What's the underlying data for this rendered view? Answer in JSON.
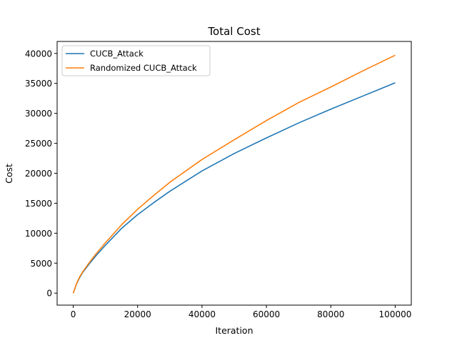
{
  "chart_data": {
    "type": "line",
    "title": "Total Cost",
    "xlabel": "Iteration",
    "ylabel": "Cost",
    "xlim": [
      -5000,
      105000
    ],
    "ylim": [
      -2000,
      42000
    ],
    "xticks": [
      0,
      20000,
      40000,
      60000,
      80000,
      100000
    ],
    "yticks": [
      0,
      5000,
      10000,
      15000,
      20000,
      25000,
      30000,
      35000,
      40000
    ],
    "grid": false,
    "legend_position": "top-left",
    "x": [
      0,
      1000,
      2000,
      3000,
      5000,
      7000,
      10000,
      15000,
      20000,
      25000,
      30000,
      40000,
      50000,
      60000,
      70000,
      80000,
      90000,
      100000
    ],
    "series": [
      {
        "name": "CUCB_Attack",
        "color": "#1f77b4",
        "values": [
          0,
          1500,
          2600,
          3500,
          4900,
          6200,
          8000,
          10800,
          13100,
          15100,
          17000,
          20400,
          23300,
          25900,
          28400,
          30700,
          32900,
          35100
        ]
      },
      {
        "name": "Randomized CUCB_Attack",
        "color": "#ff7f0e",
        "values": [
          0,
          1550,
          2700,
          3600,
          5100,
          6500,
          8400,
          11400,
          14000,
          16300,
          18500,
          22300,
          25600,
          28800,
          31800,
          34400,
          37100,
          39700
        ]
      }
    ]
  }
}
